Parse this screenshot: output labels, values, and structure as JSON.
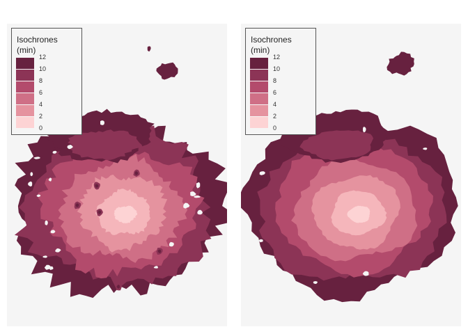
{
  "legend": {
    "title_line1": "Isochrones",
    "title_line2": "(min)",
    "labels": [
      "12",
      "10",
      "8",
      "6",
      "4",
      "2",
      "0"
    ]
  },
  "colors": {
    "panel_bg": "#f5f5f5",
    "band_12": "#67213f",
    "band_10": "#8c3456",
    "band_8": "#b34b6c",
    "band_6": "#cf6f86",
    "band_4": "#e5939f",
    "band_2": "#f5b6bb",
    "band_0": "#fdd3d4"
  },
  "maps": [
    {
      "name": "left",
      "variant": "noisy"
    },
    {
      "name": "right",
      "variant": "smooth"
    }
  ]
}
